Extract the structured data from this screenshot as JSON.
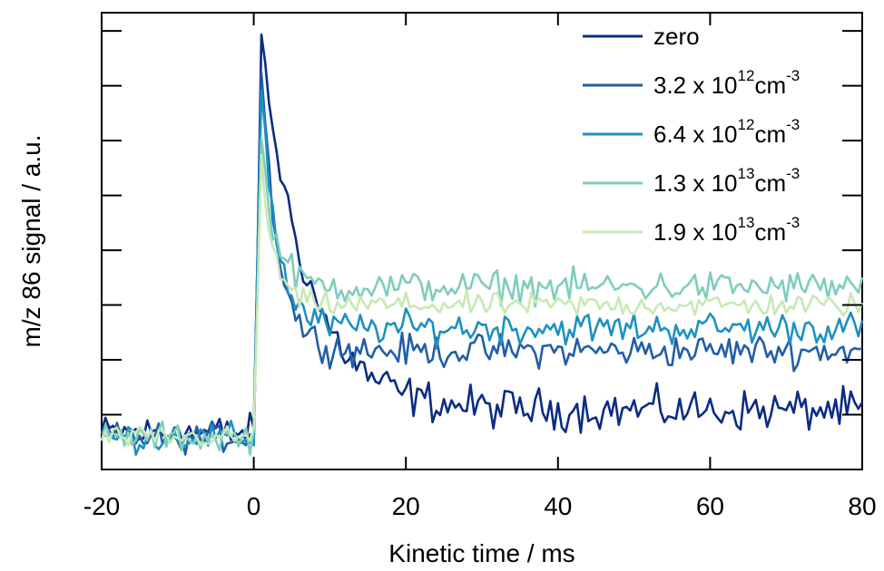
{
  "chart_data": {
    "type": "line",
    "xlabel": "Kinetic time / ms",
    "ylabel": "m/z 86 signal / a.u.",
    "xlim": [
      -20,
      80
    ],
    "ylim": [
      0,
      1
    ],
    "x_ticks": [
      "-20",
      "0",
      "20",
      "40",
      "60",
      "80"
    ],
    "y_tick_labels_shown": false,
    "grid": false,
    "legend_position": "top-right",
    "series": [
      {
        "name": "zero",
        "legend": {
          "base": "zero",
          "exp": "",
          "unit": ""
        },
        "color": "#0c2c84",
        "peak": 0.93,
        "plateau": 0.13,
        "tau": 6.0,
        "noise": 0.038,
        "pre_level": 0.08,
        "x": [
          -20,
          -10,
          0,
          1,
          2,
          3,
          5,
          8,
          12,
          20,
          30,
          40,
          50,
          60,
          70,
          80
        ],
        "values": [
          0.08,
          0.08,
          0.09,
          0.93,
          0.9,
          0.8,
          0.55,
          0.3,
          0.22,
          0.18,
          0.15,
          0.14,
          0.13,
          0.13,
          0.13,
          0.13
        ]
      },
      {
        "name": "3.2 x 10^12 cm^-3",
        "legend": {
          "base": "3.2 x 10",
          "exp": "12",
          "unit": "cm",
          "unit_exp": "-3"
        },
        "color": "#225ea8",
        "peak": 0.88,
        "plateau": 0.26,
        "tau": 2.2,
        "noise": 0.03,
        "pre_level": 0.07,
        "x": [
          -20,
          -10,
          0,
          1,
          2,
          3,
          5,
          8,
          12,
          20,
          30,
          40,
          50,
          60,
          70,
          80
        ],
        "values": [
          0.07,
          0.07,
          0.08,
          0.88,
          0.85,
          0.65,
          0.4,
          0.3,
          0.27,
          0.26,
          0.26,
          0.26,
          0.26,
          0.26,
          0.26,
          0.26
        ]
      },
      {
        "name": "6.4 x 10^12 cm^-3",
        "legend": {
          "base": "6.4 x 10",
          "exp": "12",
          "unit": "cm",
          "unit_exp": "-3"
        },
        "color": "#1d91c0",
        "peak": 0.85,
        "plateau": 0.31,
        "tau": 2.0,
        "noise": 0.03,
        "pre_level": 0.07,
        "x": [
          -20,
          -10,
          0,
          1,
          2,
          3,
          5,
          8,
          12,
          20,
          30,
          40,
          50,
          60,
          70,
          80
        ],
        "values": [
          0.07,
          0.07,
          0.08,
          0.85,
          0.8,
          0.62,
          0.4,
          0.33,
          0.32,
          0.31,
          0.31,
          0.31,
          0.31,
          0.31,
          0.31,
          0.31
        ]
      },
      {
        "name": "1.3 x 10^13 cm^-3",
        "legend": {
          "base": "1.3 x 10",
          "exp": "13",
          "unit": "cm",
          "unit_exp": "-3"
        },
        "color": "#7fcdbb",
        "peak": 0.72,
        "plateau": 0.4,
        "tau": 1.8,
        "noise": 0.03,
        "pre_level": 0.07,
        "x": [
          -20,
          -10,
          0,
          1,
          2,
          3,
          5,
          8,
          12,
          20,
          30,
          40,
          50,
          60,
          70,
          80
        ],
        "values": [
          0.07,
          0.07,
          0.08,
          0.72,
          0.68,
          0.55,
          0.44,
          0.41,
          0.4,
          0.4,
          0.4,
          0.4,
          0.4,
          0.4,
          0.4,
          0.4
        ]
      },
      {
        "name": "1.9 x 10^13 cm^-3",
        "legend": {
          "base": "1.9 x 10",
          "exp": "13",
          "unit": "cm",
          "unit_exp": "-3"
        },
        "color": "#c7e9b4",
        "peak": 0.68,
        "plateau": 0.36,
        "tau": 1.6,
        "noise": 0.022,
        "pre_level": 0.07,
        "x": [
          -20,
          -10,
          0,
          1,
          2,
          3,
          5,
          8,
          12,
          20,
          30,
          40,
          50,
          60,
          70,
          80
        ],
        "values": [
          0.07,
          0.07,
          0.08,
          0.68,
          0.62,
          0.5,
          0.4,
          0.37,
          0.36,
          0.36,
          0.36,
          0.36,
          0.36,
          0.36,
          0.36,
          0.36
        ]
      }
    ]
  }
}
